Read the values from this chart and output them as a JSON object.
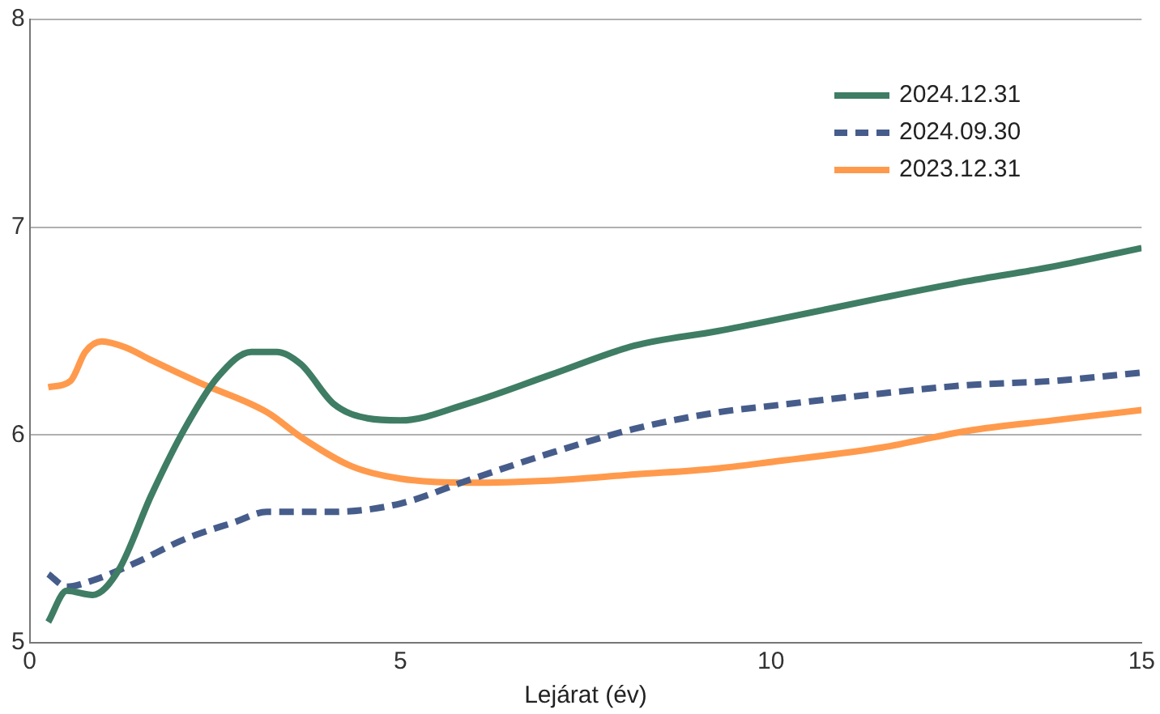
{
  "chart_data": {
    "type": "line",
    "xlabel": "Lejárat (év)",
    "xlim": [
      0,
      15
    ],
    "xticks": [
      0,
      5,
      10,
      15
    ],
    "ylim": [
      5,
      8
    ],
    "yticks": [
      5,
      6,
      7,
      8
    ],
    "grid": "y",
    "legend": "top right",
    "marker": "none",
    "series": [
      {
        "name": "2024.12.31",
        "color": "#3f7d65",
        "line_style": "solid",
        "x": [
          0.25,
          0.5,
          0.85,
          1.2,
          1.64,
          2.09,
          2.54,
          2.99,
          3.33,
          3.66,
          4.1,
          4.56,
          5,
          5.9,
          7.03,
          8.16,
          9.28,
          10,
          11.5,
          12.65,
          13.8,
          15
        ],
        "values": [
          5.1,
          5.25,
          5.23,
          5.35,
          5.71,
          6.03,
          6.28,
          6.4,
          6.4,
          6.34,
          6.15,
          6.08,
          6.07,
          6.15,
          6.29,
          6.43,
          6.5,
          6.55,
          6.66,
          6.74,
          6.81,
          6.9
        ]
      },
      {
        "name": "2024.09.30",
        "color": "#465d8b",
        "line_style": "dashed",
        "x": [
          0.25,
          0.5,
          0.85,
          1.4,
          2.1,
          2.76,
          3.2,
          4.1,
          5,
          5.9,
          7,
          8.16,
          9.3,
          10,
          11.5,
          12.65,
          13.8,
          15
        ],
        "values": [
          5.33,
          5.27,
          5.3,
          5.38,
          5.5,
          5.58,
          5.63,
          5.63,
          5.67,
          5.78,
          5.91,
          6.03,
          6.11,
          6.14,
          6.2,
          6.24,
          6.26,
          6.3
        ]
      },
      {
        "name": "2023.12.31",
        "color": "#ff9a4d",
        "line_style": "solid",
        "x": [
          0.25,
          0.55,
          0.75,
          0.97,
          1.3,
          1.64,
          2.3,
          3.2,
          3.66,
          4.34,
          5,
          5.9,
          7,
          8.16,
          9.3,
          10,
          11.5,
          12.65,
          13.8,
          15
        ],
        "values": [
          6.23,
          6.26,
          6.4,
          6.45,
          6.42,
          6.36,
          6.25,
          6.11,
          5.99,
          5.85,
          5.79,
          5.77,
          5.78,
          5.81,
          5.84,
          5.87,
          5.94,
          6.02,
          6.07,
          6.12
        ]
      }
    ]
  }
}
